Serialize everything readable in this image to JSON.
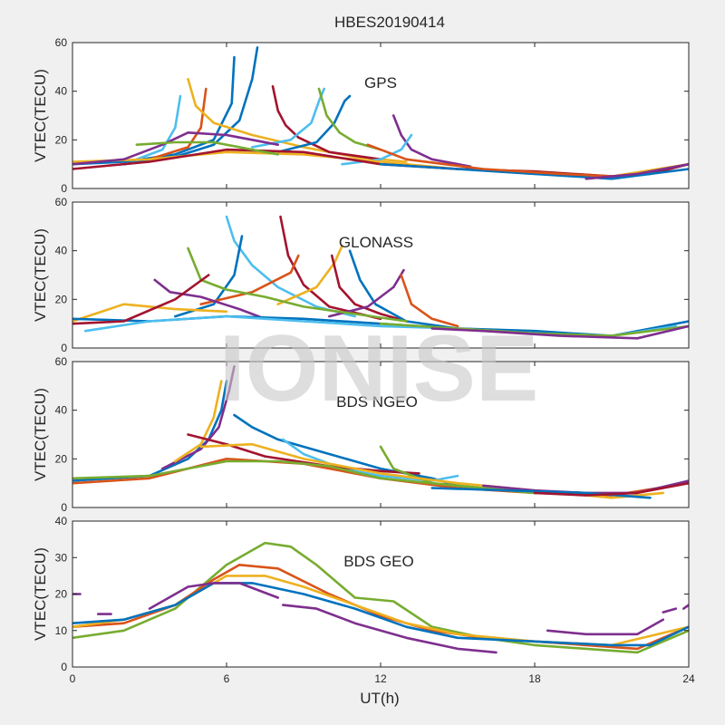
{
  "figure": {
    "title": "HBES20190414",
    "xlabel": "UT(h)",
    "watermark": "IONISE"
  },
  "palette": [
    "#0072bd",
    "#d95319",
    "#edb120",
    "#7e2f8e",
    "#77ac30",
    "#4dbeee",
    "#a2142f"
  ],
  "chart_data": [
    {
      "type": "line",
      "panel_label": "GPS",
      "ylabel": "VTEC(TECU)",
      "xlim": [
        0,
        24
      ],
      "ylim": [
        0,
        60
      ],
      "xticks": [
        0,
        6,
        12,
        18,
        24
      ],
      "yticks": [
        0,
        20,
        40,
        60
      ],
      "grid": false,
      "series": [
        {
          "color": "#0072bd",
          "x": [
            0,
            2,
            4,
            5.5,
            6.2,
            6.3
          ],
          "y": [
            10,
            11,
            14,
            20,
            35,
            54
          ]
        },
        {
          "color": "#0072bd",
          "x": [
            2,
            4,
            5.5,
            6.5,
            7.0,
            7.2
          ],
          "y": [
            10,
            13,
            18,
            28,
            45,
            58
          ]
        },
        {
          "color": "#d95319",
          "x": [
            3,
            4.5,
            5.0,
            5.2
          ],
          "y": [
            12,
            17,
            25,
            41
          ]
        },
        {
          "color": "#edb120",
          "x": [
            4.5,
            4.8,
            5.5,
            7,
            9,
            11,
            13
          ],
          "y": [
            45,
            34,
            27,
            22,
            17,
            13,
            11
          ]
        },
        {
          "color": "#4dbeee",
          "x": [
            2.5,
            3.5,
            4.0,
            4.2
          ],
          "y": [
            12,
            16,
            25,
            38
          ]
        },
        {
          "color": "#a2142f",
          "x": [
            7.8,
            8.0,
            8.3,
            8.8,
            10,
            12
          ],
          "y": [
            42,
            32,
            26,
            21,
            15,
            12
          ]
        },
        {
          "color": "#4dbeee",
          "x": [
            7,
            8.5,
            9.3,
            9.6,
            9.8
          ],
          "y": [
            17,
            20,
            27,
            36,
            41
          ]
        },
        {
          "color": "#0072bd",
          "x": [
            8,
            9.5,
            10.2,
            10.6,
            10.8
          ],
          "y": [
            15,
            19,
            27,
            36,
            38
          ]
        },
        {
          "color": "#77ac30",
          "x": [
            9.6,
            9.9,
            10.4,
            11,
            12
          ],
          "y": [
            41,
            30,
            23,
            19,
            16
          ]
        },
        {
          "color": "#7e2f8e",
          "x": [
            12.5,
            12.8,
            13.2,
            14,
            15.5
          ],
          "y": [
            30,
            22,
            16,
            12,
            9
          ]
        },
        {
          "color": "#4dbeee",
          "x": [
            10.5,
            12,
            12.8,
            13.2
          ],
          "y": [
            10,
            12,
            16,
            22
          ]
        },
        {
          "color": "#edb120",
          "x": [
            0,
            3,
            6,
            9,
            12,
            15,
            18,
            21,
            24
          ],
          "y": [
            11,
            12,
            15,
            14,
            11,
            8,
            7,
            5,
            10
          ]
        },
        {
          "color": "#a2142f",
          "x": [
            0,
            3,
            6,
            9,
            12,
            15,
            18,
            21,
            22.5,
            24
          ],
          "y": [
            8,
            11,
            16,
            15,
            10,
            8,
            7,
            5,
            6,
            10
          ]
        },
        {
          "color": "#7e2f8e",
          "x": [
            0,
            2,
            3.5,
            4.5,
            6,
            8
          ],
          "y": [
            10,
            12,
            18,
            23,
            22,
            18
          ]
        },
        {
          "color": "#77ac30",
          "x": [
            2.5,
            4,
            5.5,
            7.5,
            8
          ],
          "y": [
            18,
            19,
            19,
            15,
            14
          ]
        },
        {
          "color": "#0072bd",
          "x": [
            12,
            15,
            18,
            21,
            24
          ],
          "y": [
            10,
            8,
            6,
            4,
            8
          ]
        },
        {
          "color": "#d95319",
          "x": [
            11.5,
            13,
            16,
            19,
            21
          ],
          "y": [
            18,
            12,
            8,
            6,
            5
          ]
        },
        {
          "color": "#7e2f8e",
          "x": [
            20,
            22,
            24
          ],
          "y": [
            4,
            6,
            10
          ]
        }
      ]
    },
    {
      "type": "line",
      "panel_label": "GLONASS",
      "ylabel": "VTEC(TECU)",
      "xlim": [
        0,
        24
      ],
      "ylim": [
        0,
        60
      ],
      "xticks": [
        0,
        6,
        12,
        18,
        24
      ],
      "yticks": [
        0,
        20,
        40,
        60
      ],
      "grid": false,
      "series": [
        {
          "color": "#4dbeee",
          "x": [
            6.0,
            6.3,
            7,
            8,
            9.5,
            11
          ],
          "y": [
            54,
            44,
            34,
            25,
            17,
            13
          ]
        },
        {
          "color": "#a2142f",
          "x": [
            8.1,
            8.4,
            9,
            10,
            12
          ],
          "y": [
            54,
            38,
            26,
            17,
            12
          ]
        },
        {
          "color": "#0072bd",
          "x": [
            4,
            5.5,
            6.3,
            6.6
          ],
          "y": [
            13,
            18,
            30,
            46
          ]
        },
        {
          "color": "#d95319",
          "x": [
            5,
            7,
            8.5,
            8.8
          ],
          "y": [
            18,
            23,
            31,
            38
          ]
        },
        {
          "color": "#edb120",
          "x": [
            8,
            9.5,
            10.2,
            10.5
          ],
          "y": [
            18,
            25,
            35,
            42
          ]
        },
        {
          "color": "#a2142f",
          "x": [
            10.1,
            10.4,
            11,
            12,
            13
          ],
          "y": [
            38,
            25,
            18,
            14,
            11
          ]
        },
        {
          "color": "#0072bd",
          "x": [
            10.8,
            11.2,
            11.8,
            13,
            15
          ],
          "y": [
            40,
            28,
            18,
            11,
            8
          ]
        },
        {
          "color": "#7e2f8e",
          "x": [
            10,
            11.5,
            12.5,
            12.9
          ],
          "y": [
            13,
            17,
            25,
            32
          ]
        },
        {
          "color": "#d95319",
          "x": [
            12.8,
            13.2,
            14,
            15
          ],
          "y": [
            30,
            18,
            12,
            9
          ]
        },
        {
          "color": "#77ac30",
          "x": [
            4.5,
            5,
            6,
            7.5,
            9,
            11,
            13
          ],
          "y": [
            41,
            28,
            24,
            21,
            17,
            14,
            11
          ]
        },
        {
          "color": "#7e2f8e",
          "x": [
            3.2,
            3.8,
            5,
            6.5,
            7.5
          ],
          "y": [
            28,
            23,
            21,
            16,
            12
          ]
        },
        {
          "color": "#edb120",
          "x": [
            0,
            2,
            4,
            6
          ],
          "y": [
            11,
            18,
            16,
            15
          ]
        },
        {
          "color": "#0072bd",
          "x": [
            0,
            3,
            6,
            9,
            12,
            15,
            18,
            21,
            24
          ],
          "y": [
            12,
            11,
            13,
            12,
            10,
            8,
            7,
            5,
            11
          ]
        },
        {
          "color": "#a2142f",
          "x": [
            0,
            2,
            4,
            5.3
          ],
          "y": [
            10,
            11,
            20,
            30
          ]
        },
        {
          "color": "#4dbeee",
          "x": [
            0.5,
            3,
            6,
            9,
            12,
            15,
            18,
            21,
            23.5
          ],
          "y": [
            7,
            11,
            13,
            11,
            9,
            8,
            6,
            5,
            9
          ]
        },
        {
          "color": "#77ac30",
          "x": [
            12,
            15,
            18,
            21,
            24
          ],
          "y": [
            10,
            8,
            6,
            5,
            9
          ]
        },
        {
          "color": "#7e2f8e",
          "x": [
            14,
            16,
            19,
            22,
            24
          ],
          "y": [
            8,
            7,
            5,
            4,
            9
          ]
        }
      ]
    },
    {
      "type": "line",
      "panel_label": "BDS NGEO",
      "ylabel": "VTEC(TECU)",
      "xlim": [
        0,
        24
      ],
      "ylim": [
        0,
        60
      ],
      "xticks": [
        0,
        6,
        12,
        18,
        24
      ],
      "yticks": [
        0,
        20,
        40,
        60
      ],
      "grid": false,
      "series": [
        {
          "color": "#0072bd",
          "x": [
            0,
            3,
            4.5,
            5.3,
            5.8,
            6.0
          ],
          "y": [
            11,
            13,
            20,
            28,
            40,
            52
          ]
        },
        {
          "color": "#7e2f8e",
          "x": [
            3.5,
            5,
            5.7,
            6.1,
            6.3
          ],
          "y": [
            16,
            24,
            33,
            48,
            58
          ]
        },
        {
          "color": "#edb120",
          "x": [
            4,
            5,
            5.5,
            5.8
          ],
          "y": [
            19,
            26,
            37,
            52
          ]
        },
        {
          "color": "#0072bd",
          "x": [
            6.3,
            7,
            8,
            10,
            12,
            14,
            15
          ],
          "y": [
            38,
            33,
            28,
            22,
            16,
            12,
            9
          ]
        },
        {
          "color": "#4dbeee",
          "x": [
            8.2,
            9,
            10.5,
            12,
            14,
            15
          ],
          "y": [
            28,
            22,
            16,
            13,
            11,
            13
          ]
        },
        {
          "color": "#a2142f",
          "x": [
            4.5,
            6,
            7.5,
            10,
            12,
            13.5
          ],
          "y": [
            30,
            26,
            21,
            17,
            15,
            14
          ]
        },
        {
          "color": "#d95319",
          "x": [
            0,
            3,
            6,
            9,
            12,
            15,
            18,
            21,
            24
          ],
          "y": [
            10,
            12,
            20,
            18,
            12,
            8,
            6,
            5,
            10
          ]
        },
        {
          "color": "#77ac30",
          "x": [
            0,
            3,
            6,
            8,
            10,
            12,
            15,
            18
          ],
          "y": [
            12,
            13,
            19,
            19,
            17,
            12,
            9,
            6
          ]
        },
        {
          "color": "#77ac30",
          "x": [
            12,
            12.5,
            14,
            16,
            18
          ],
          "y": [
            25,
            16,
            10,
            8,
            6
          ]
        },
        {
          "color": "#edb120",
          "x": [
            5,
            7,
            9,
            12,
            15,
            18,
            21,
            23
          ],
          "y": [
            25,
            26,
            20,
            14,
            10,
            7,
            4,
            6
          ]
        },
        {
          "color": "#7e2f8e",
          "x": [
            16,
            18,
            20,
            22,
            24
          ],
          "y": [
            9,
            7,
            6,
            6,
            11
          ]
        },
        {
          "color": "#0072bd",
          "x": [
            14,
            17,
            20,
            22.5
          ],
          "y": [
            8,
            7,
            6,
            4
          ]
        },
        {
          "color": "#a2142f",
          "x": [
            18,
            20,
            22,
            24
          ],
          "y": [
            6,
            5,
            6,
            10
          ]
        }
      ]
    },
    {
      "type": "line",
      "panel_label": "BDS GEO",
      "ylabel": "VTEC(TECU)",
      "xlim": [
        0,
        24
      ],
      "ylim": [
        0,
        40
      ],
      "xticks": [
        0,
        6,
        12,
        18,
        24
      ],
      "yticks": [
        0,
        10,
        20,
        30,
        40
      ],
      "grid": false,
      "series": [
        {
          "color": "#77ac30",
          "x": [
            0,
            2,
            4,
            6,
            7.5,
            8.5,
            9.5,
            11,
            12.5,
            14,
            16,
            18,
            20,
            22,
            24
          ],
          "y": [
            8,
            10,
            16,
            28,
            34,
            33,
            28,
            19,
            18,
            11,
            8,
            6,
            5,
            4,
            10
          ]
        },
        {
          "color": "#d95319",
          "x": [
            0,
            2,
            4,
            5.5,
            6.5,
            8,
            10,
            12,
            14,
            16,
            18,
            20,
            22,
            24
          ],
          "y": [
            11,
            12,
            17,
            24,
            28,
            27,
            20,
            14,
            10,
            8,
            7,
            6,
            5,
            11
          ]
        },
        {
          "color": "#edb120",
          "x": [
            0,
            2,
            4,
            6,
            7.5,
            9,
            11,
            13,
            15,
            18,
            21,
            24
          ],
          "y": [
            11,
            13,
            17,
            25,
            25,
            22,
            17,
            12,
            9,
            7,
            6,
            11
          ]
        },
        {
          "color": "#0072bd",
          "x": [
            0,
            2,
            4,
            5.5,
            7,
            9,
            11,
            13,
            15,
            18,
            21,
            22.5,
            24
          ],
          "y": [
            12,
            13,
            17,
            23,
            23,
            20,
            16,
            11,
            8,
            7,
            6,
            6,
            11
          ]
        },
        {
          "color": "#7e2f8e",
          "x": [
            0,
            0.3
          ],
          "y": [
            20,
            20
          ]
        },
        {
          "color": "#7e2f8e",
          "x": [
            1,
            1.5
          ],
          "y": [
            14.5,
            14.5
          ]
        },
        {
          "color": "#7e2f8e",
          "x": [
            3,
            4.5,
            5.5,
            6.5,
            8
          ],
          "y": [
            16,
            22,
            23,
            23,
            19
          ]
        },
        {
          "color": "#7e2f8e",
          "x": [
            8.2,
            9.5,
            11,
            13,
            15,
            16.5
          ],
          "y": [
            17,
            16,
            12,
            8,
            5,
            4
          ]
        },
        {
          "color": "#7e2f8e",
          "x": [
            18.5,
            20,
            22,
            23
          ],
          "y": [
            10,
            9,
            9,
            13
          ]
        },
        {
          "color": "#7e2f8e",
          "x": [
            23,
            23.5
          ],
          "y": [
            15,
            16
          ]
        },
        {
          "color": "#7e2f8e",
          "x": [
            23.8,
            24
          ],
          "y": [
            16,
            17
          ]
        }
      ]
    }
  ]
}
